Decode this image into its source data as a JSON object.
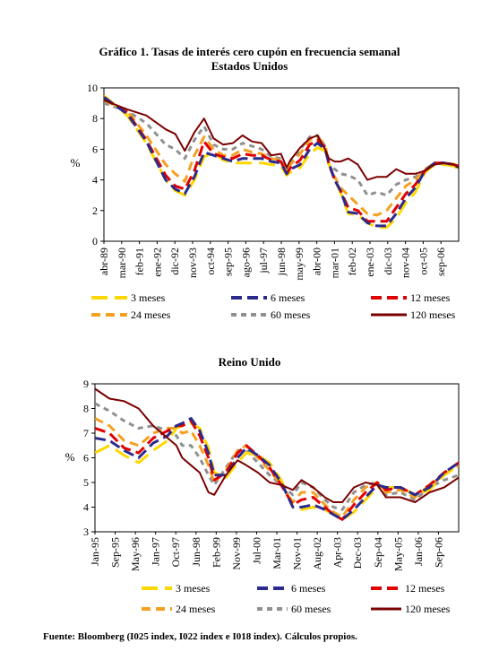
{
  "title_line1": "Gráfico 1. Tasas de interés cero cupón en frecuencia semanal",
  "source": "Fuente: Bloomberg (I025 index, I022 index e I018 index). Cálculos propios.",
  "chart_data": [
    {
      "type": "line",
      "title": "Estados Unidos",
      "ylabel": "%",
      "ylim": [
        0,
        10
      ],
      "yticks": [
        "0",
        "2",
        "4",
        "6",
        "8",
        "10"
      ],
      "xlim": [
        1989.29,
        2007.75
      ],
      "grid": false,
      "legend": "bottom",
      "categories": [
        "abr-89",
        "mar-90",
        "feb-91",
        "ene-92",
        "dic-92",
        "nov-93",
        "oct-94",
        "sep-95",
        "ago-96",
        "jul-97",
        "jun-98",
        "may-99",
        "abr-00",
        "mar-01",
        "feb-02",
        "ene-03",
        "dic-03",
        "nov-04",
        "oct-05",
        "sep-06"
      ],
      "x": [
        1989.29,
        1990.5,
        1991.5,
        1992.5,
        1993.0,
        1993.5,
        1994.0,
        1994.5,
        1995.0,
        1995.5,
        1996.0,
        1996.5,
        1997.0,
        1997.5,
        1998.0,
        1998.5,
        1998.8,
        1999.0,
        1999.5,
        2000.0,
        2000.4,
        2000.8,
        2001.0,
        2001.3,
        2001.6,
        2002.0,
        2002.5,
        2003.0,
        2003.5,
        2004.0,
        2004.5,
        2005.0,
        2005.5,
        2006.0,
        2006.5,
        2007.0,
        2007.5,
        2007.75
      ],
      "series": [
        {
          "name": "3 meses",
          "color": "#FFD700",
          "dash": "18 8",
          "width": 3,
          "values": [
            9.5,
            8.2,
            6.4,
            4.0,
            3.3,
            3.0,
            4.0,
            5.5,
            5.8,
            5.3,
            5.1,
            5.1,
            5.1,
            5.1,
            5.0,
            4.9,
            4.3,
            4.5,
            4.8,
            5.7,
            6.1,
            5.9,
            5.0,
            4.0,
            3.2,
            1.8,
            1.7,
            1.2,
            0.9,
            0.9,
            1.5,
            2.5,
            3.2,
            4.5,
            5.0,
            5.0,
            4.9,
            4.7
          ]
        },
        {
          "name": "6 meses",
          "color": "#2B2B8C",
          "dash": "12 6",
          "width": 3,
          "values": [
            9.4,
            8.3,
            6.5,
            4.0,
            3.4,
            3.1,
            4.2,
            5.8,
            5.6,
            5.4,
            5.2,
            5.4,
            5.4,
            5.4,
            5.2,
            5.1,
            4.4,
            4.7,
            5.0,
            6.0,
            6.4,
            6.0,
            5.1,
            4.0,
            3.3,
            1.9,
            1.8,
            1.2,
            1.0,
            1.0,
            1.8,
            2.8,
            3.5,
            4.6,
            5.1,
            5.1,
            5.0,
            4.8
          ]
        },
        {
          "name": "12 meses",
          "color": "#E00000",
          "dash": "12 6",
          "width": 3,
          "values": [
            9.3,
            8.4,
            6.6,
            4.3,
            3.6,
            3.4,
            4.6,
            6.5,
            5.7,
            5.5,
            5.4,
            5.7,
            5.6,
            5.6,
            5.3,
            5.2,
            4.4,
            4.8,
            5.3,
            6.3,
            6.6,
            6.1,
            5.0,
            4.0,
            3.3,
            2.2,
            2.0,
            1.3,
            1.3,
            1.3,
            2.2,
            3.1,
            3.7,
            4.6,
            5.1,
            5.1,
            5.0,
            4.9
          ]
        },
        {
          "name": "24 meses",
          "color": "#F4A020",
          "dash": "10 6",
          "width": 3,
          "values": [
            9.2,
            8.5,
            6.9,
            5.0,
            4.4,
            3.9,
            5.6,
            6.8,
            6.0,
            5.6,
            5.6,
            6.0,
            5.8,
            5.7,
            5.4,
            5.3,
            4.5,
            5.0,
            5.7,
            6.6,
            6.8,
            6.3,
            5.0,
            4.2,
            3.5,
            3.0,
            2.4,
            1.8,
            1.7,
            2.0,
            2.8,
            3.6,
            4.0,
            4.7,
            5.1,
            5.1,
            5.0,
            4.9
          ]
        },
        {
          "name": "60 meses",
          "color": "#909090",
          "dash": "6 5",
          "width": 3,
          "values": [
            9.0,
            8.5,
            7.7,
            6.3,
            6.0,
            5.4,
            6.6,
            7.5,
            6.3,
            6.0,
            6.0,
            6.4,
            6.2,
            6.0,
            5.5,
            5.4,
            4.5,
            5.1,
            6.0,
            6.8,
            6.9,
            6.2,
            5.0,
            4.7,
            4.4,
            4.3,
            4.0,
            3.0,
            3.2,
            3.0,
            3.7,
            4.0,
            4.2,
            4.6,
            5.0,
            5.1,
            5.0,
            4.8
          ]
        },
        {
          "name": "120 meses",
          "color": "#7B0000",
          "dash": "",
          "width": 2,
          "values": [
            9.2,
            8.6,
            8.2,
            7.3,
            7.0,
            5.9,
            7.1,
            8.0,
            6.7,
            6.3,
            6.4,
            6.9,
            6.5,
            6.4,
            5.6,
            5.7,
            4.8,
            5.3,
            6.1,
            6.7,
            6.9,
            6.0,
            5.4,
            5.2,
            5.2,
            5.4,
            5.0,
            4.0,
            4.2,
            4.2,
            4.7,
            4.4,
            4.4,
            4.6,
            5.0,
            5.1,
            5.0,
            4.8
          ]
        }
      ]
    },
    {
      "type": "line",
      "title": "Reino Unido",
      "ylabel": "%",
      "ylim": [
        3,
        9
      ],
      "yticks": [
        "3",
        "4",
        "5",
        "6",
        "7",
        "8",
        "9"
      ],
      "xlim": [
        1995.0,
        2007.5
      ],
      "grid": false,
      "legend": "bottom",
      "categories": [
        "Jan-95",
        "Sep-95",
        "May-96",
        "Jan-97",
        "Oct-97",
        "Jun-98",
        "Feb-99",
        "Nov-99",
        "Jul-00",
        "Mar-01",
        "Nov-01",
        "Aug-02",
        "Apr-03",
        "Dec-03",
        "Sep-04",
        "May-05",
        "Jan-06",
        "Sep-06"
      ],
      "x": [
        1995.0,
        1995.5,
        1996.0,
        1996.5,
        1997.0,
        1997.5,
        1997.8,
        1998.0,
        1998.3,
        1998.6,
        1998.9,
        1999.1,
        1999.5,
        1999.9,
        2000.2,
        2000.6,
        2001.0,
        2001.4,
        2001.8,
        2002.1,
        2002.5,
        2002.9,
        2003.2,
        2003.5,
        2003.9,
        2004.3,
        2004.7,
        2005.0,
        2005.5,
        2006.0,
        2006.5,
        2007.0,
        2007.5
      ],
      "series": [
        {
          "name": "3 meses",
          "color": "#FFD700",
          "dash": "18 8",
          "width": 3,
          "values": [
            6.2,
            6.5,
            6.1,
            5.8,
            6.3,
            6.7,
            7.2,
            7.3,
            7.4,
            7.2,
            6.4,
            5.4,
            5.2,
            5.8,
            6.2,
            6.1,
            5.8,
            5.1,
            4.0,
            3.9,
            4.0,
            3.9,
            3.7,
            3.5,
            3.8,
            4.3,
            4.8,
            4.8,
            4.8,
            4.5,
            4.7,
            5.3,
            5.7
          ]
        },
        {
          "name": "6 meses",
          "color": "#2B2B8C",
          "dash": "12 6",
          "width": 3,
          "values": [
            6.8,
            6.7,
            6.3,
            6.0,
            6.6,
            6.9,
            7.3,
            7.4,
            7.6,
            7.1,
            6.2,
            5.3,
            5.3,
            6.0,
            6.4,
            6.1,
            5.7,
            5.0,
            4.0,
            4.0,
            4.1,
            3.9,
            3.7,
            3.5,
            3.9,
            4.4,
            4.9,
            4.8,
            4.8,
            4.5,
            4.8,
            5.4,
            5.8
          ]
        },
        {
          "name": "12 meses",
          "color": "#E00000",
          "dash": "12 6",
          "width": 3,
          "values": [
            7.2,
            7.0,
            6.4,
            6.2,
            6.8,
            7.1,
            7.3,
            7.3,
            7.5,
            6.9,
            6.0,
            5.1,
            5.4,
            6.2,
            6.5,
            6.1,
            5.6,
            4.9,
            4.1,
            4.3,
            4.4,
            4.0,
            3.7,
            3.5,
            4.1,
            4.6,
            5.0,
            4.7,
            4.8,
            4.5,
            4.9,
            5.4,
            5.8
          ]
        },
        {
          "name": "24 meses",
          "color": "#F4A020",
          "dash": "10 6",
          "width": 3,
          "values": [
            7.6,
            7.3,
            6.7,
            6.5,
            7.0,
            7.2,
            7.2,
            7.0,
            7.1,
            6.5,
            5.7,
            5.0,
            5.5,
            6.3,
            6.5,
            6.0,
            5.5,
            4.9,
            4.2,
            4.6,
            4.6,
            4.1,
            3.8,
            3.6,
            4.3,
            4.8,
            5.0,
            4.6,
            4.7,
            4.4,
            4.9,
            5.3,
            5.7
          ]
        },
        {
          "name": "60 meses",
          "color": "#909090",
          "dash": "6 5",
          "width": 3,
          "values": [
            8.2,
            7.9,
            7.5,
            7.2,
            7.3,
            7.1,
            6.9,
            6.5,
            6.5,
            6.0,
            5.3,
            4.9,
            5.6,
            6.3,
            6.3,
            5.8,
            5.3,
            4.9,
            4.5,
            5.0,
            4.8,
            4.3,
            4.0,
            3.9,
            4.6,
            4.9,
            5.0,
            4.5,
            4.6,
            4.3,
            4.8,
            5.1,
            5.3
          ]
        },
        {
          "name": "120 meses",
          "color": "#7B0000",
          "dash": "",
          "width": 2,
          "values": [
            8.8,
            8.4,
            8.3,
            8.0,
            7.3,
            6.8,
            6.5,
            6.0,
            5.7,
            5.4,
            4.6,
            4.5,
            5.3,
            5.9,
            5.7,
            5.4,
            5.0,
            4.9,
            4.7,
            5.1,
            4.8,
            4.4,
            4.2,
            4.2,
            4.8,
            5.0,
            4.9,
            4.4,
            4.4,
            4.2,
            4.6,
            4.8,
            5.2
          ]
        }
      ]
    }
  ]
}
